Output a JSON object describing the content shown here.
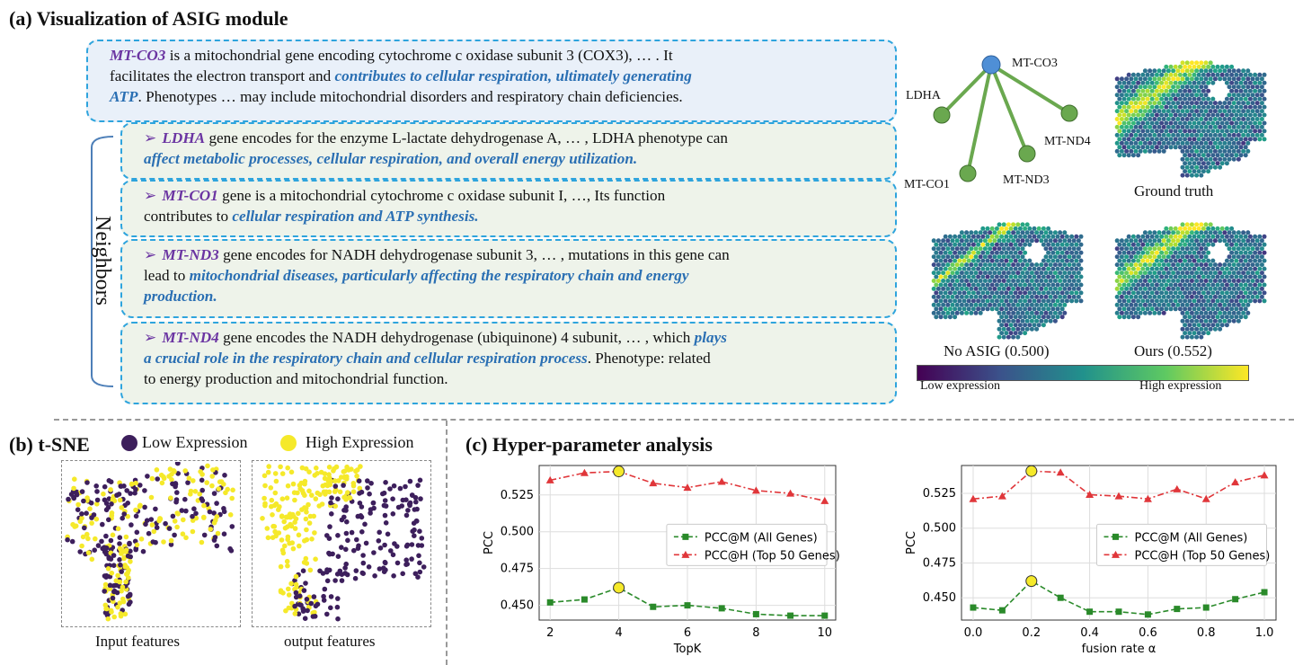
{
  "panel_a": {
    "title": "(a) Visualization of ASIG module",
    "main_box": {
      "gene": "MT-CO3",
      "line1_rest": " is a mitochondrial gene encoding cytochrome c oxidase subunit 3 (COX3), … . It",
      "line2_plain": "facilitates the electron transport and ",
      "line2_hl": "contributes to cellular respiration, ultimately generating",
      "line3_hl": "ATP",
      "line3_rest": ". Phenotypes … may include mitochondrial disorders and respiratory chain deficiencies."
    },
    "neighbors_label": "Neighbors",
    "neighbors": [
      {
        "gene": "LDHA",
        "l1": " gene encodes for the enzyme L-lactate dehydrogenase A, … , LDHA phenotype can",
        "l2_hl": "affect metabolic processes, cellular respiration, and overall energy utilization."
      },
      {
        "gene": "MT-CO1",
        "l1": " gene is a mitochondrial cytochrome c oxidase subunit I, …, Its function",
        "l2_plain": "contributes to ",
        "l2_hl": "cellular respiration and ATP synthesis."
      },
      {
        "gene": "MT-ND3",
        "l1": " gene encodes for NADH dehydrogenase subunit 3, … , mutations in this gene can",
        "l2_plain": "lead to ",
        "l2_hl": "mitochondrial diseases, particularly affecting the respiratory chain and energy",
        "l3_hl": "production."
      },
      {
        "gene": "MT-ND4",
        "l1": " gene encodes the NADH dehydrogenase (ubiquinone) 4 subunit, … , which ",
        "l1_hl": "plays",
        "l2_hl": "a crucial role in the respiratory chain and cellular respiration process",
        "l2_rest": ". Phenotype: related",
        "l3": "to energy production and mitochondrial function."
      }
    ],
    "graph": {
      "center": "MT-CO3",
      "nodes": [
        "LDHA",
        "MT-CO1",
        "MT-ND3",
        "MT-ND4"
      ],
      "center_color": "#4f8fd6",
      "node_color": "#6aa84f"
    },
    "maps": {
      "ground_truth": "Ground truth",
      "no_asig": "No ASIG (0.500)",
      "ours": "Ours (0.552)"
    },
    "colorbar": {
      "low": "Low expression",
      "high": "High expression"
    }
  },
  "panel_b": {
    "title": "(b) t-SNE",
    "legend_low": "Low Expression",
    "legend_high": "High Expression",
    "low_color": "#3d1f5c",
    "high_color": "#f5e92a",
    "input_caption": "Input features",
    "output_caption": "output features"
  },
  "panel_c": {
    "title": "(c) Hyper-parameter analysis"
  },
  "chart_data": [
    {
      "type": "line",
      "xlabel": "TopK",
      "ylabel": "PCC",
      "x": [
        2,
        3,
        4,
        5,
        6,
        7,
        8,
        9,
        10
      ],
      "xticks": [
        "2",
        "4",
        "6",
        "8",
        "10"
      ],
      "yticks": [
        "0.450",
        "0.475",
        "0.500",
        "0.525"
      ],
      "ylim": [
        0.44,
        0.545
      ],
      "grid": true,
      "legend_position": "center-right",
      "series": [
        {
          "name": "PCC@M (All Genes)",
          "color": "#2a8a2a",
          "marker": "square",
          "values": [
            0.452,
            0.454,
            0.462,
            0.449,
            0.45,
            0.448,
            0.444,
            0.443,
            0.443
          ]
        },
        {
          "name": "PCC@H (Top 50 Genes)",
          "color": "#e0363a",
          "marker": "triangle",
          "values": [
            0.535,
            0.54,
            0.541,
            0.533,
            0.53,
            0.534,
            0.528,
            0.526,
            0.521
          ]
        }
      ],
      "highlight_x": 4
    },
    {
      "type": "line",
      "xlabel": "fusion rate α",
      "ylabel": "PCC",
      "x": [
        0.0,
        0.1,
        0.2,
        0.3,
        0.4,
        0.5,
        0.6,
        0.7,
        0.8,
        0.9,
        1.0
      ],
      "xticks": [
        "0.0",
        "0.2",
        "0.4",
        "0.6",
        "0.8",
        "1.0"
      ],
      "yticks": [
        "0.450",
        "0.475",
        "0.500",
        "0.525"
      ],
      "ylim": [
        0.434,
        0.545
      ],
      "grid": true,
      "legend_position": "center-right",
      "series": [
        {
          "name": "PCC@M (All Genes)",
          "color": "#2a8a2a",
          "marker": "square",
          "values": [
            0.443,
            0.441,
            0.462,
            0.45,
            0.44,
            0.44,
            0.438,
            0.442,
            0.443,
            0.449,
            0.454
          ]
        },
        {
          "name": "PCC@H (Top 50 Genes)",
          "color": "#e0363a",
          "marker": "triangle",
          "values": [
            0.521,
            0.523,
            0.541,
            0.54,
            0.524,
            0.523,
            0.521,
            0.528,
            0.521,
            0.533,
            0.538
          ]
        }
      ],
      "highlight_x": 0.2
    }
  ]
}
